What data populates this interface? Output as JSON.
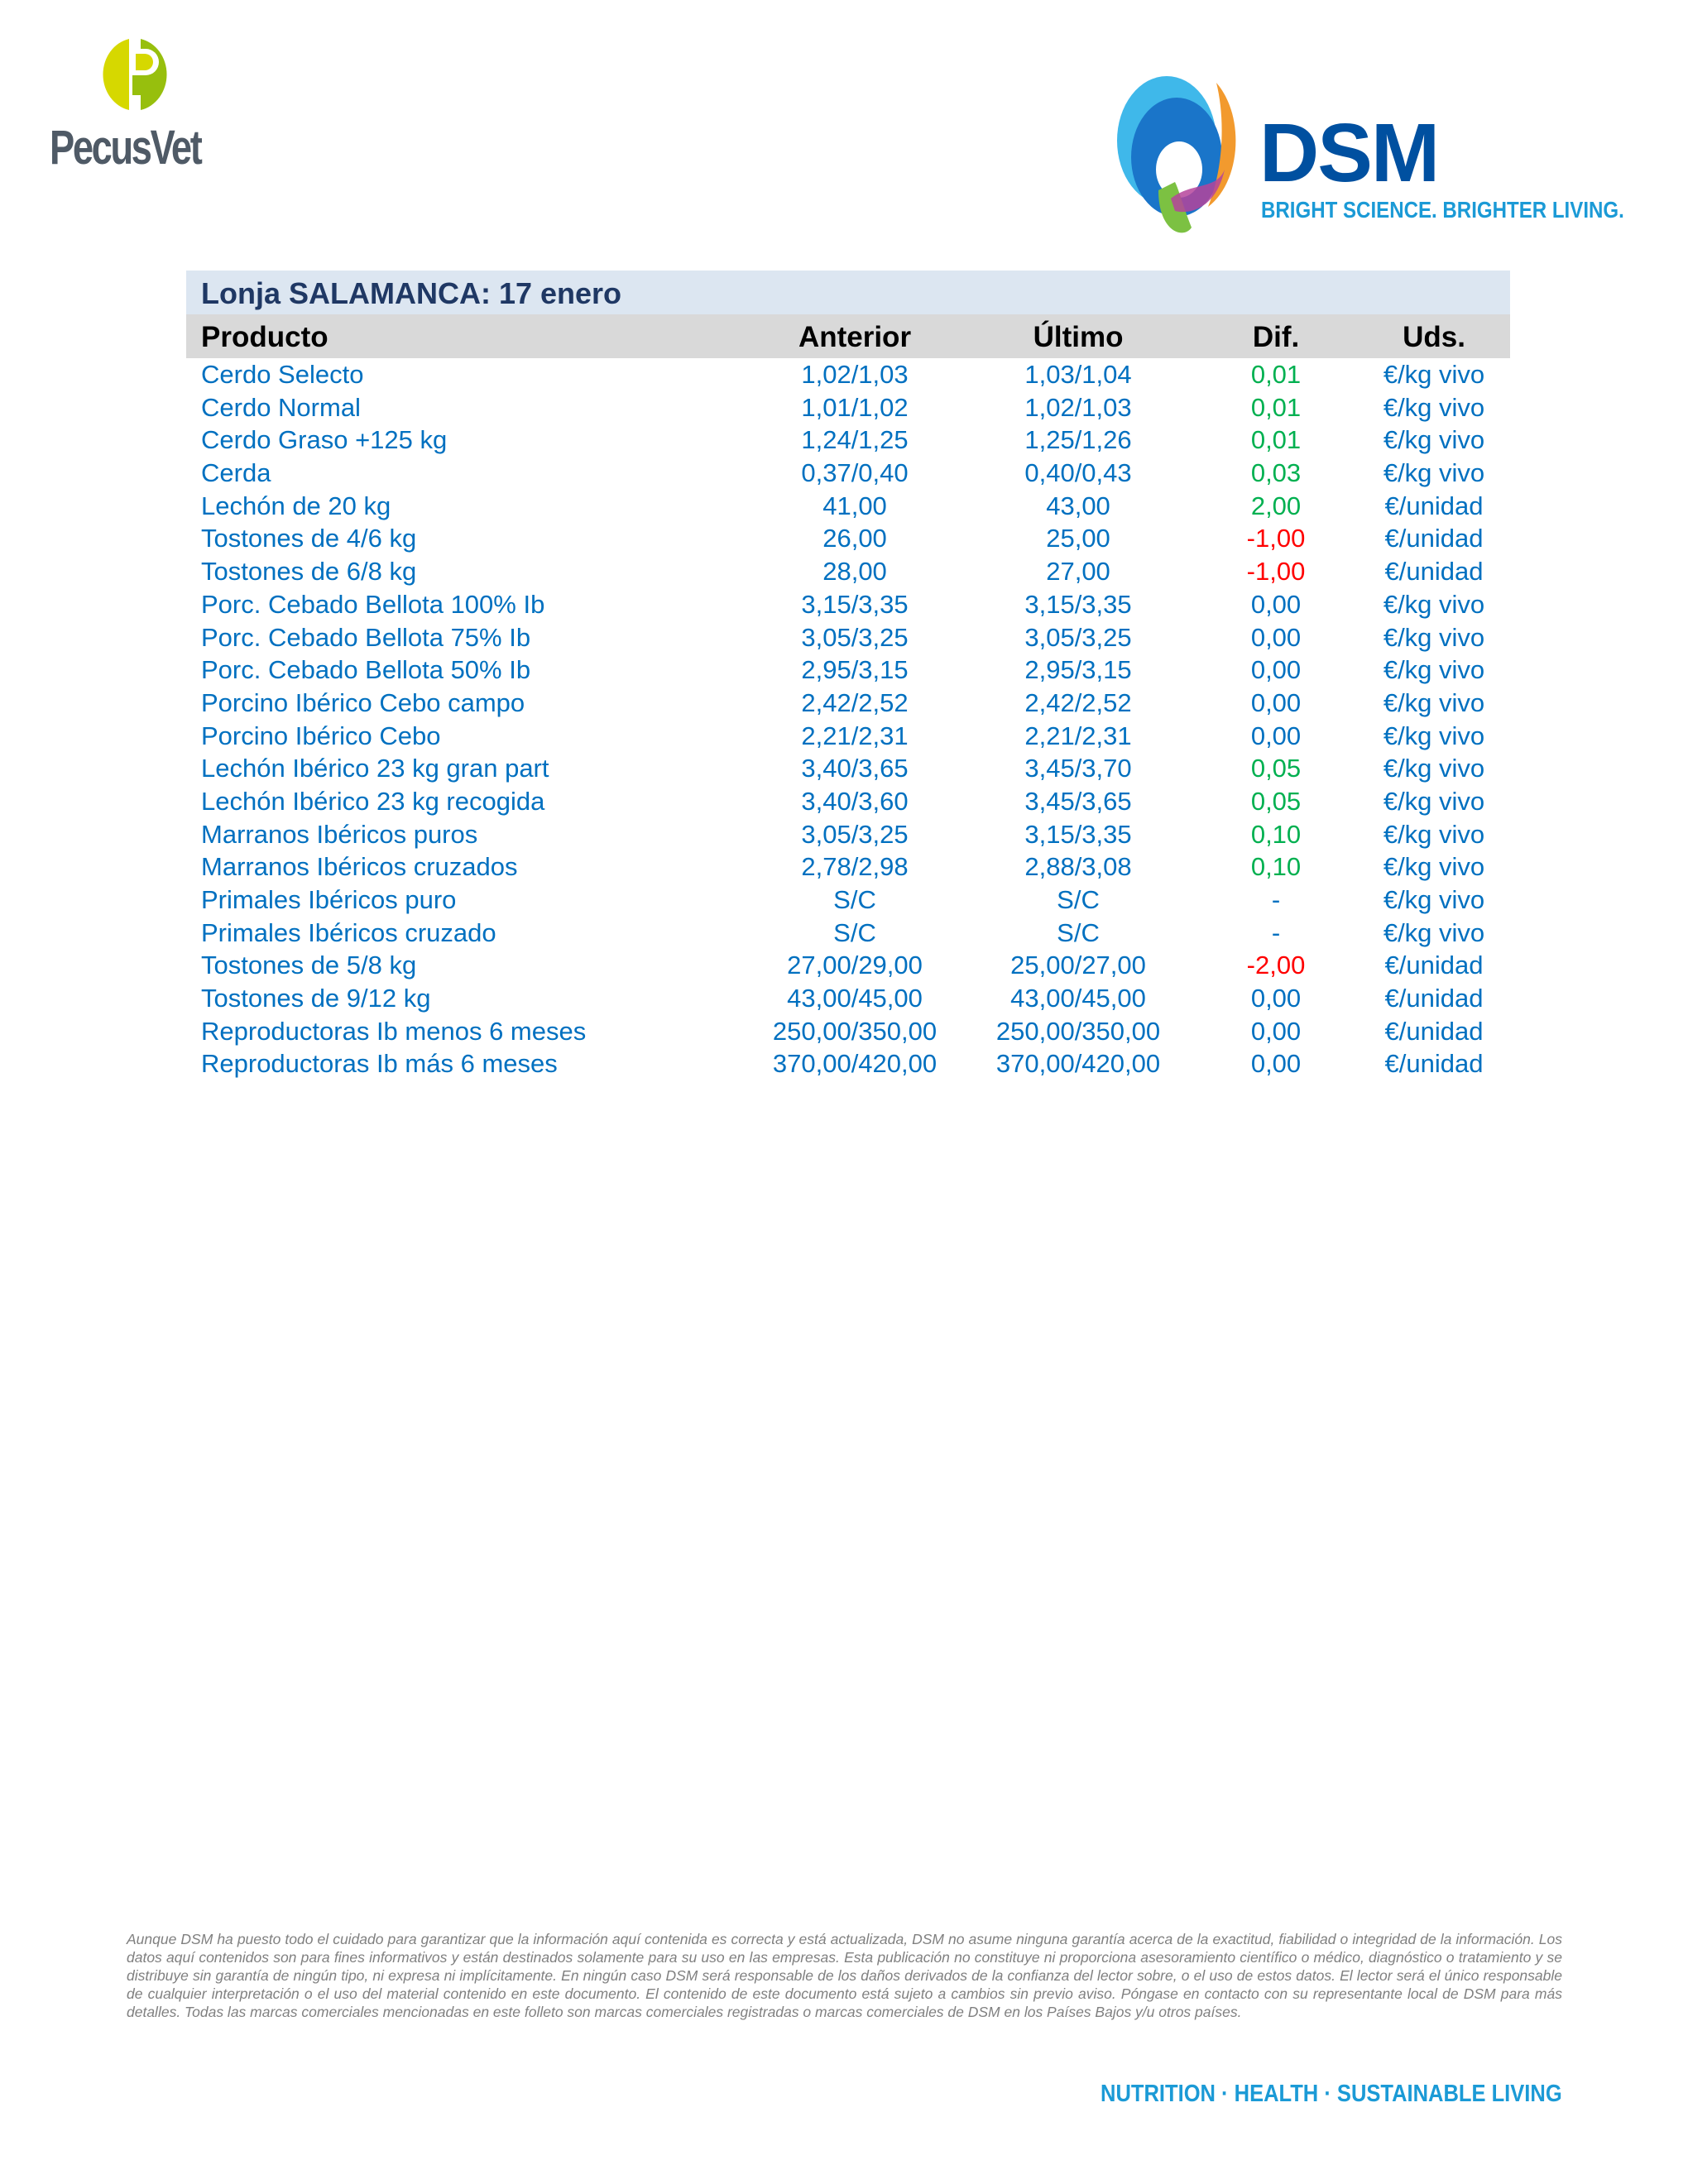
{
  "logos": {
    "pecusvet": "PecusVet",
    "dsm": "DSM",
    "dsm_tagline": "BRIGHT SCIENCE. BRIGHTER LIVING."
  },
  "table": {
    "title": "Lonja SALAMANCA: 17 enero",
    "headers": [
      "Producto",
      "Anterior",
      "Último",
      "Dif.",
      "Uds."
    ],
    "colors": {
      "up": "#00b050",
      "down": "#ff0000",
      "neutral": "#0070c0"
    },
    "rows": [
      [
        "Cerdo Selecto",
        "1,02/1,03",
        "1,03/1,04",
        "0,01",
        "€/kg vivo",
        "up"
      ],
      [
        "Cerdo Normal",
        "1,01/1,02",
        "1,02/1,03",
        "0,01",
        "€/kg vivo",
        "up"
      ],
      [
        "Cerdo Graso +125 kg",
        "1,24/1,25",
        "1,25/1,26",
        "0,01",
        "€/kg vivo",
        "up"
      ],
      [
        "Cerda",
        "0,37/0,40",
        "0,40/0,43",
        "0,03",
        "€/kg vivo",
        "up"
      ],
      [
        "Lechón de 20 kg",
        "41,00",
        "43,00",
        "2,00",
        "€/unidad",
        "up"
      ],
      [
        "Tostones de 4/6 kg",
        "26,00",
        "25,00",
        "-1,00",
        "€/unidad",
        "down"
      ],
      [
        "Tostones de 6/8 kg",
        "28,00",
        "27,00",
        "-1,00",
        "€/unidad",
        "down"
      ],
      [
        "Porc. Cebado Bellota 100% Ib",
        "3,15/3,35",
        "3,15/3,35",
        "0,00",
        "€/kg vivo",
        "neutral"
      ],
      [
        "Porc. Cebado Bellota 75% Ib",
        "3,05/3,25",
        "3,05/3,25",
        "0,00",
        "€/kg vivo",
        "neutral"
      ],
      [
        "Porc. Cebado Bellota 50% Ib",
        "2,95/3,15",
        "2,95/3,15",
        "0,00",
        "€/kg vivo",
        "neutral"
      ],
      [
        "Porcino Ibérico Cebo campo",
        "2,42/2,52",
        "2,42/2,52",
        "0,00",
        "€/kg vivo",
        "neutral"
      ],
      [
        "Porcino Ibérico Cebo",
        "2,21/2,31",
        "2,21/2,31",
        "0,00",
        "€/kg vivo",
        "neutral"
      ],
      [
        "Lechón Ibérico 23 kg gran part",
        "3,40/3,65",
        "3,45/3,70",
        "0,05",
        "€/kg vivo",
        "up"
      ],
      [
        "Lechón Ibérico 23 kg recogida",
        "3,40/3,60",
        "3,45/3,65",
        "0,05",
        "€/kg vivo",
        "up"
      ],
      [
        "Marranos Ibéricos puros",
        "3,05/3,25",
        "3,15/3,35",
        "0,10",
        "€/kg vivo",
        "up"
      ],
      [
        "Marranos Ibéricos cruzados",
        "2,78/2,98",
        "2,88/3,08",
        "0,10",
        "€/kg vivo",
        "up"
      ],
      [
        "Primales Ibéricos puro",
        "S/C",
        "S/C",
        "-",
        "€/kg vivo",
        "neutral"
      ],
      [
        "Primales Ibéricos cruzado",
        "S/C",
        "S/C",
        "-",
        "€/kg vivo",
        "neutral"
      ],
      [
        "Tostones de 5/8 kg",
        "27,00/29,00",
        "25,00/27,00",
        "-2,00",
        "€/unidad",
        "down"
      ],
      [
        "Tostones de 9/12 kg",
        "43,00/45,00",
        "43,00/45,00",
        "0,00",
        "€/unidad",
        "neutral"
      ],
      [
        "Reproductoras Ib menos 6 meses",
        "250,00/350,00",
        "250,00/350,00",
        "0,00",
        "€/unidad",
        "neutral"
      ],
      [
        "Reproductoras Ib más 6 meses",
        "370,00/420,00",
        "370,00/420,00",
        "0,00",
        "€/unidad",
        "neutral"
      ]
    ]
  },
  "footer": {
    "disclaimer": "Aunque DSM ha puesto todo el cuidado para garantizar que la información aquí contenida es correcta y está actualizada, DSM no asume ninguna garantía acerca de la exactitud, fiabilidad o integridad de la información. Los datos aquí contenidos son para fines informativos y están destinados solamente para su uso en las empresas. Esta publicación no constituye ni proporciona asesoramiento científico o médico, diagnóstico o tratamiento y se distribuye sin garantía de ningún tipo, ni expresa ni implícitamente. En ningún caso DSM será responsable de los daños derivados de la confianza del lector sobre, o el uso de estos datos. El lector será el único responsable de cualquier interpretación o el uso del material contenido en este documento. El contenido de este documento está sujeto a cambios sin previo aviso. Póngase en contacto con su representante local de DSM para más detalles. Todas las marcas comerciales mencionadas en este folleto son marcas comerciales registradas o marcas comerciales de DSM en los Países Bajos y/u otros países.",
    "tagline": "NUTRITION · HEALTH · SUSTAINABLE LIVING"
  }
}
